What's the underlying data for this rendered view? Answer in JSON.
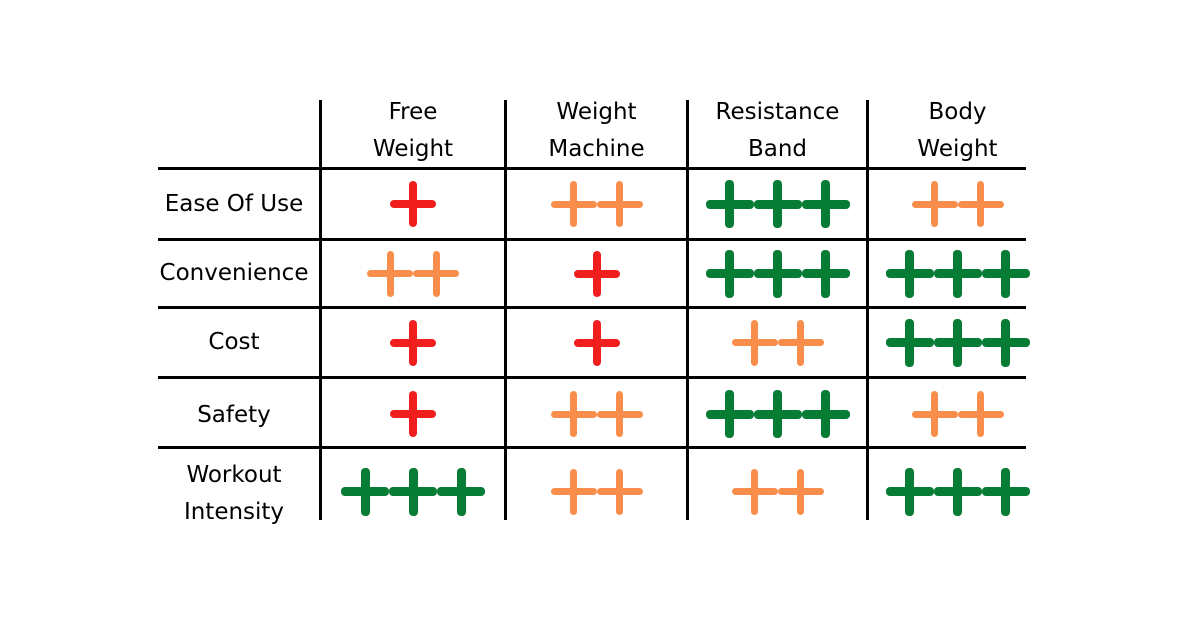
{
  "chart_data": {
    "type": "table",
    "title": "",
    "columns": [
      "Free Weight",
      "Weight Machine",
      "Resistance Band",
      "Body Weight"
    ],
    "rows": [
      {
        "label": "Ease Of Use",
        "values": [
          1,
          2,
          3,
          2
        ]
      },
      {
        "label": "Convenience",
        "values": [
          2,
          1,
          3,
          3
        ]
      },
      {
        "label": "Cost",
        "values": [
          1,
          1,
          2,
          3
        ]
      },
      {
        "label": "Safety",
        "values": [
          1,
          2,
          3,
          2
        ]
      },
      {
        "label": "Workout Intensity",
        "values": [
          3,
          2,
          2,
          3
        ]
      }
    ],
    "rating_symbol": "+",
    "legend": {
      "1": "low (red)",
      "2": "medium (orange)",
      "3": "high (green)"
    }
  },
  "colors": {
    "1": "#f11e1e",
    "2": "#f98e4c",
    "3": "#077c34"
  },
  "headers": [
    {
      "line1": "Free",
      "line2": "Weight"
    },
    {
      "line1": "Weight",
      "line2": "Machine"
    },
    {
      "line1": "Resistance",
      "line2": "Band"
    },
    {
      "line1": "Body",
      "line2": "Weight"
    }
  ],
  "row_labels": [
    {
      "line1": "Ease Of Use",
      "line2": ""
    },
    {
      "line1": "Convenience",
      "line2": ""
    },
    {
      "line1": "Cost",
      "line2": ""
    },
    {
      "line1": "Safety",
      "line2": ""
    },
    {
      "line1": "Workout",
      "line2": "Intensity"
    }
  ]
}
